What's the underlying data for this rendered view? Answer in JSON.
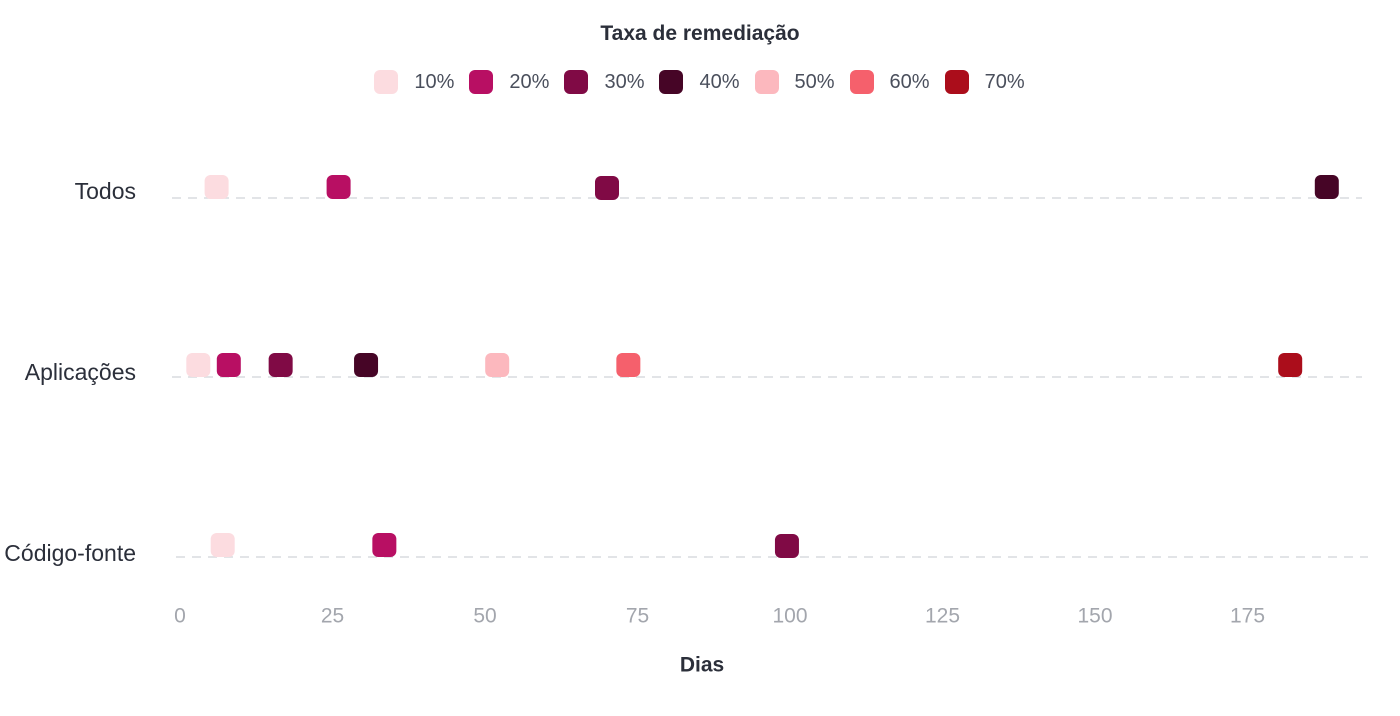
{
  "chart_data": {
    "type": "scatter",
    "title": "",
    "xlabel": "Dias",
    "ylabel": "",
    "xlim": [
      0,
      192
    ],
    "xticks": [
      "0",
      "25",
      "50",
      "75",
      "100",
      "125",
      "150",
      "175"
    ],
    "categories": [
      "Todos",
      "Aplicações",
      "Código-fonte"
    ],
    "legend": {
      "title": "Taxa de remediação",
      "placement": "top-center"
    },
    "grid": false,
    "series": [
      {
        "name": "10%",
        "color": "#fcdce0",
        "values": [
          6,
          3,
          7
        ]
      },
      {
        "name": "20%",
        "color": "#b80f63",
        "values": [
          26,
          8,
          33.5
        ]
      },
      {
        "name": "30%",
        "color": "#800a45",
        "values": [
          70,
          16.5,
          99.5
        ]
      },
      {
        "name": "40%",
        "color": "#460526",
        "values": [
          188,
          30.5,
          null
        ]
      },
      {
        "name": "50%",
        "color": "#fcb8be",
        "values": [
          null,
          52,
          null
        ]
      },
      {
        "name": "60%",
        "color": "#f5606c",
        "values": [
          null,
          73.5,
          null
        ]
      },
      {
        "name": "70%",
        "color": "#ab0d1b",
        "values": [
          null,
          182,
          null
        ]
      }
    ]
  }
}
